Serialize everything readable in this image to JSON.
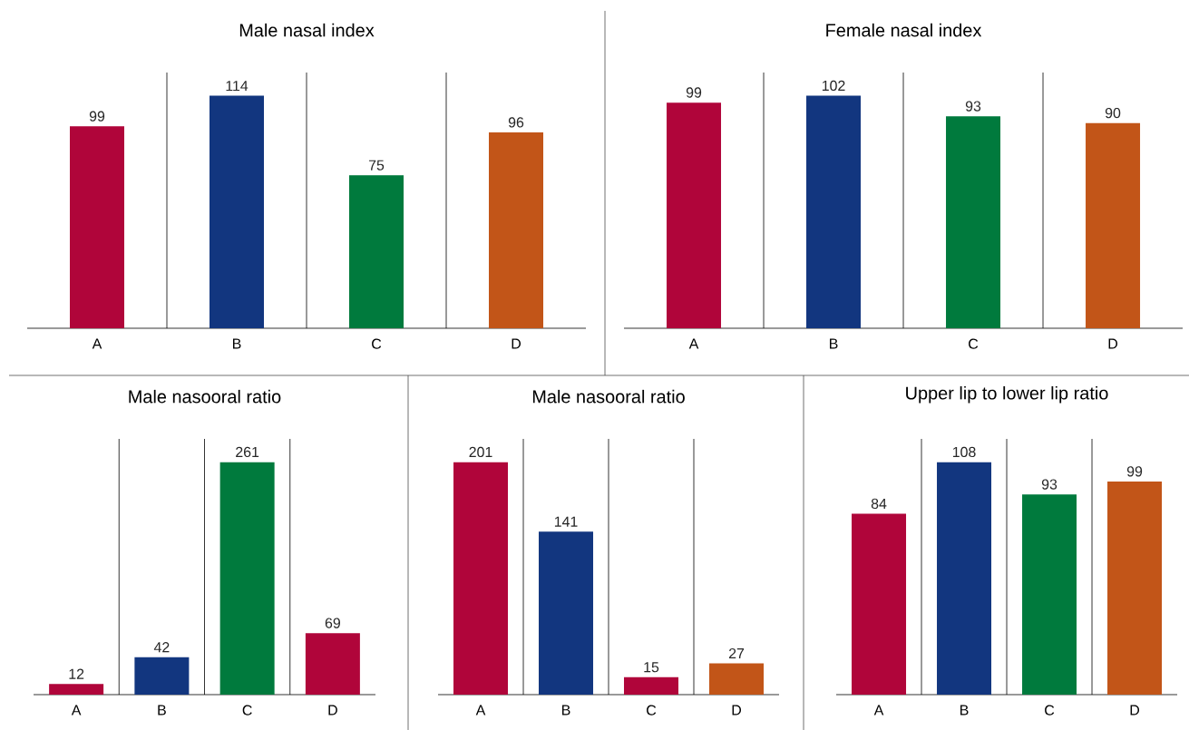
{
  "chart_data": [
    {
      "type": "bar",
      "title": "Male nasal index",
      "categories": [
        "A",
        "B",
        "C",
        "D"
      ],
      "values": [
        99,
        114,
        75,
        96
      ],
      "colors": [
        "#b0053a",
        "#12367f",
        "#007a3d",
        "#c25518"
      ],
      "data_labels": true,
      "grid": "x"
    },
    {
      "type": "bar",
      "title": "Female nasal index",
      "categories": [
        "A",
        "B",
        "C",
        "D"
      ],
      "values": [
        99,
        102,
        93,
        90
      ],
      "colors": [
        "#b0053a",
        "#12367f",
        "#007a3d",
        "#c25518"
      ],
      "data_labels": true,
      "grid": "x"
    },
    {
      "type": "bar",
      "title": "Male nasooral ratio",
      "categories": [
        "A",
        "B",
        "C",
        "D"
      ],
      "values": [
        12,
        42,
        261,
        69
      ],
      "colors": [
        "#b0053a",
        "#12367f",
        "#007a3d",
        "#b0053a"
      ],
      "data_labels": true,
      "grid": "x"
    },
    {
      "type": "bar",
      "title": "Male nasooral ratio",
      "categories": [
        "A",
        "B",
        "C",
        "D"
      ],
      "values": [
        201,
        141,
        15,
        27
      ],
      "colors": [
        "#b0053a",
        "#12367f",
        "#b0053a",
        "#c25518"
      ],
      "data_labels": true,
      "grid": "x"
    },
    {
      "type": "bar",
      "title": "Upper lip to lower lip ratio",
      "categories": [
        "A",
        "B",
        "C",
        "D"
      ],
      "values": [
        84,
        108,
        93,
        99
      ],
      "colors": [
        "#b0053a",
        "#12367f",
        "#007a3d",
        "#c25518"
      ],
      "data_labels": true,
      "grid": "x"
    }
  ]
}
